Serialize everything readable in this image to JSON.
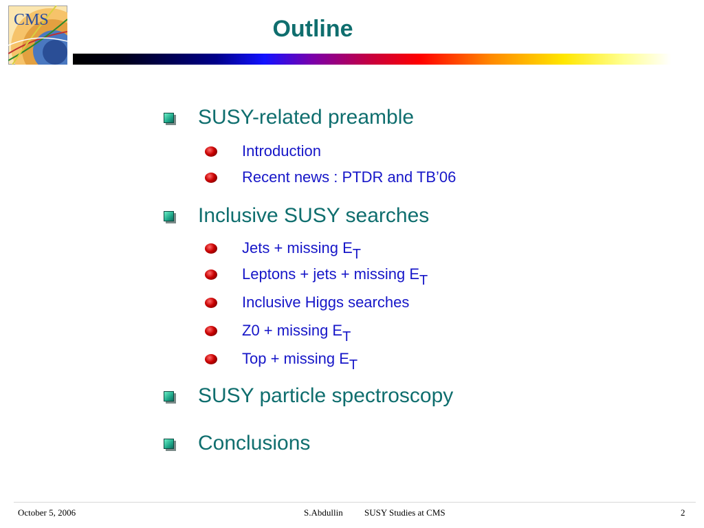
{
  "header": {
    "logo_text": "CMS",
    "title": "Outline",
    "bar_colors": [
      "#000000",
      "#00008a",
      "#1212ff",
      "#c8003c",
      "#ff0000",
      "#ff8a00",
      "#ffe600",
      "#ffffff"
    ]
  },
  "outline": [
    {
      "label": "SUSY-related preamble",
      "children": [
        {
          "text": "Introduction",
          "sub": ""
        },
        {
          "text": "Recent news : PTDR and TB’06",
          "sub": ""
        }
      ]
    },
    {
      "label": "Inclusive SUSY searches",
      "children": [
        {
          "text": "Jets + missing E",
          "sub": "T"
        },
        {
          "text": "Leptons + jets + missing E",
          "sub": "T"
        },
        {
          "text": "Inclusive Higgs searches",
          "sub": ""
        },
        {
          "text": "Z0 + missing E",
          "sub": "T"
        },
        {
          "text": "Top + missing E",
          "sub": "T"
        }
      ]
    },
    {
      "label": "SUSY particle spectroscopy",
      "children": []
    },
    {
      "label": "Conclusions",
      "children": []
    }
  ],
  "footer": {
    "date": "October 5, 2006",
    "author": "S.Abdullin",
    "talk": "SUSY Studies at CMS",
    "page": "2"
  },
  "colors": {
    "title": "#0f6e6e",
    "level1_text": "#0f6e6e",
    "level2_text": "#1616c8",
    "square_bullet": "#1ea88a",
    "ball_bullet": "#c80000"
  }
}
